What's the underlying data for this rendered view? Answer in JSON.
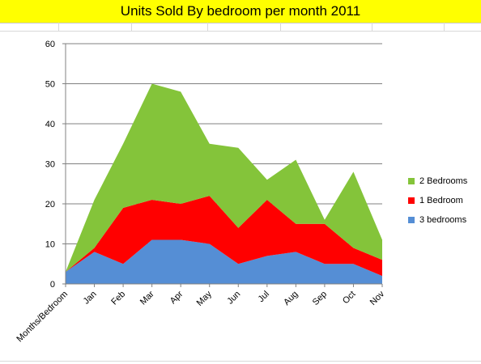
{
  "title": "Units Sold By bedroom per month 2011",
  "colors": {
    "title_bg": "#ffff00",
    "two_bedrooms": "#84c43a",
    "one_bedroom": "#ff0000",
    "three_bedrooms": "#558ed5",
    "gridline": "#808080"
  },
  "chart_data": {
    "type": "area",
    "stacked": true,
    "title": "Units Sold By bedroom per month 2011",
    "categories": [
      "Months/Bedroom",
      "Jan",
      "Feb",
      "Mar",
      "Apr",
      "May",
      "Jun",
      "Jul",
      "Aug",
      "Sep",
      "Oct",
      "Nov"
    ],
    "series": [
      {
        "name": "3 bedrooms",
        "color": "#558ed5",
        "values": [
          3,
          8,
          5,
          11,
          11,
          10,
          5,
          7,
          8,
          5,
          5,
          2
        ]
      },
      {
        "name": "1 Bedroom",
        "color": "#ff0000",
        "values": [
          0,
          1,
          14,
          10,
          9,
          12,
          9,
          14,
          7,
          10,
          4,
          4
        ]
      },
      {
        "name": "2 Bedrooms",
        "color": "#84c43a",
        "values": [
          0,
          12,
          16,
          29,
          28,
          13,
          20,
          5,
          16,
          1,
          19,
          5
        ]
      }
    ],
    "ylim": [
      0,
      60
    ],
    "yticks": [
      0,
      10,
      20,
      30,
      40,
      50,
      60
    ],
    "grid": true,
    "legend_position": "right",
    "legend_order": [
      "2 Bedrooms",
      "1 Bedroom",
      "3 bedrooms"
    ]
  }
}
